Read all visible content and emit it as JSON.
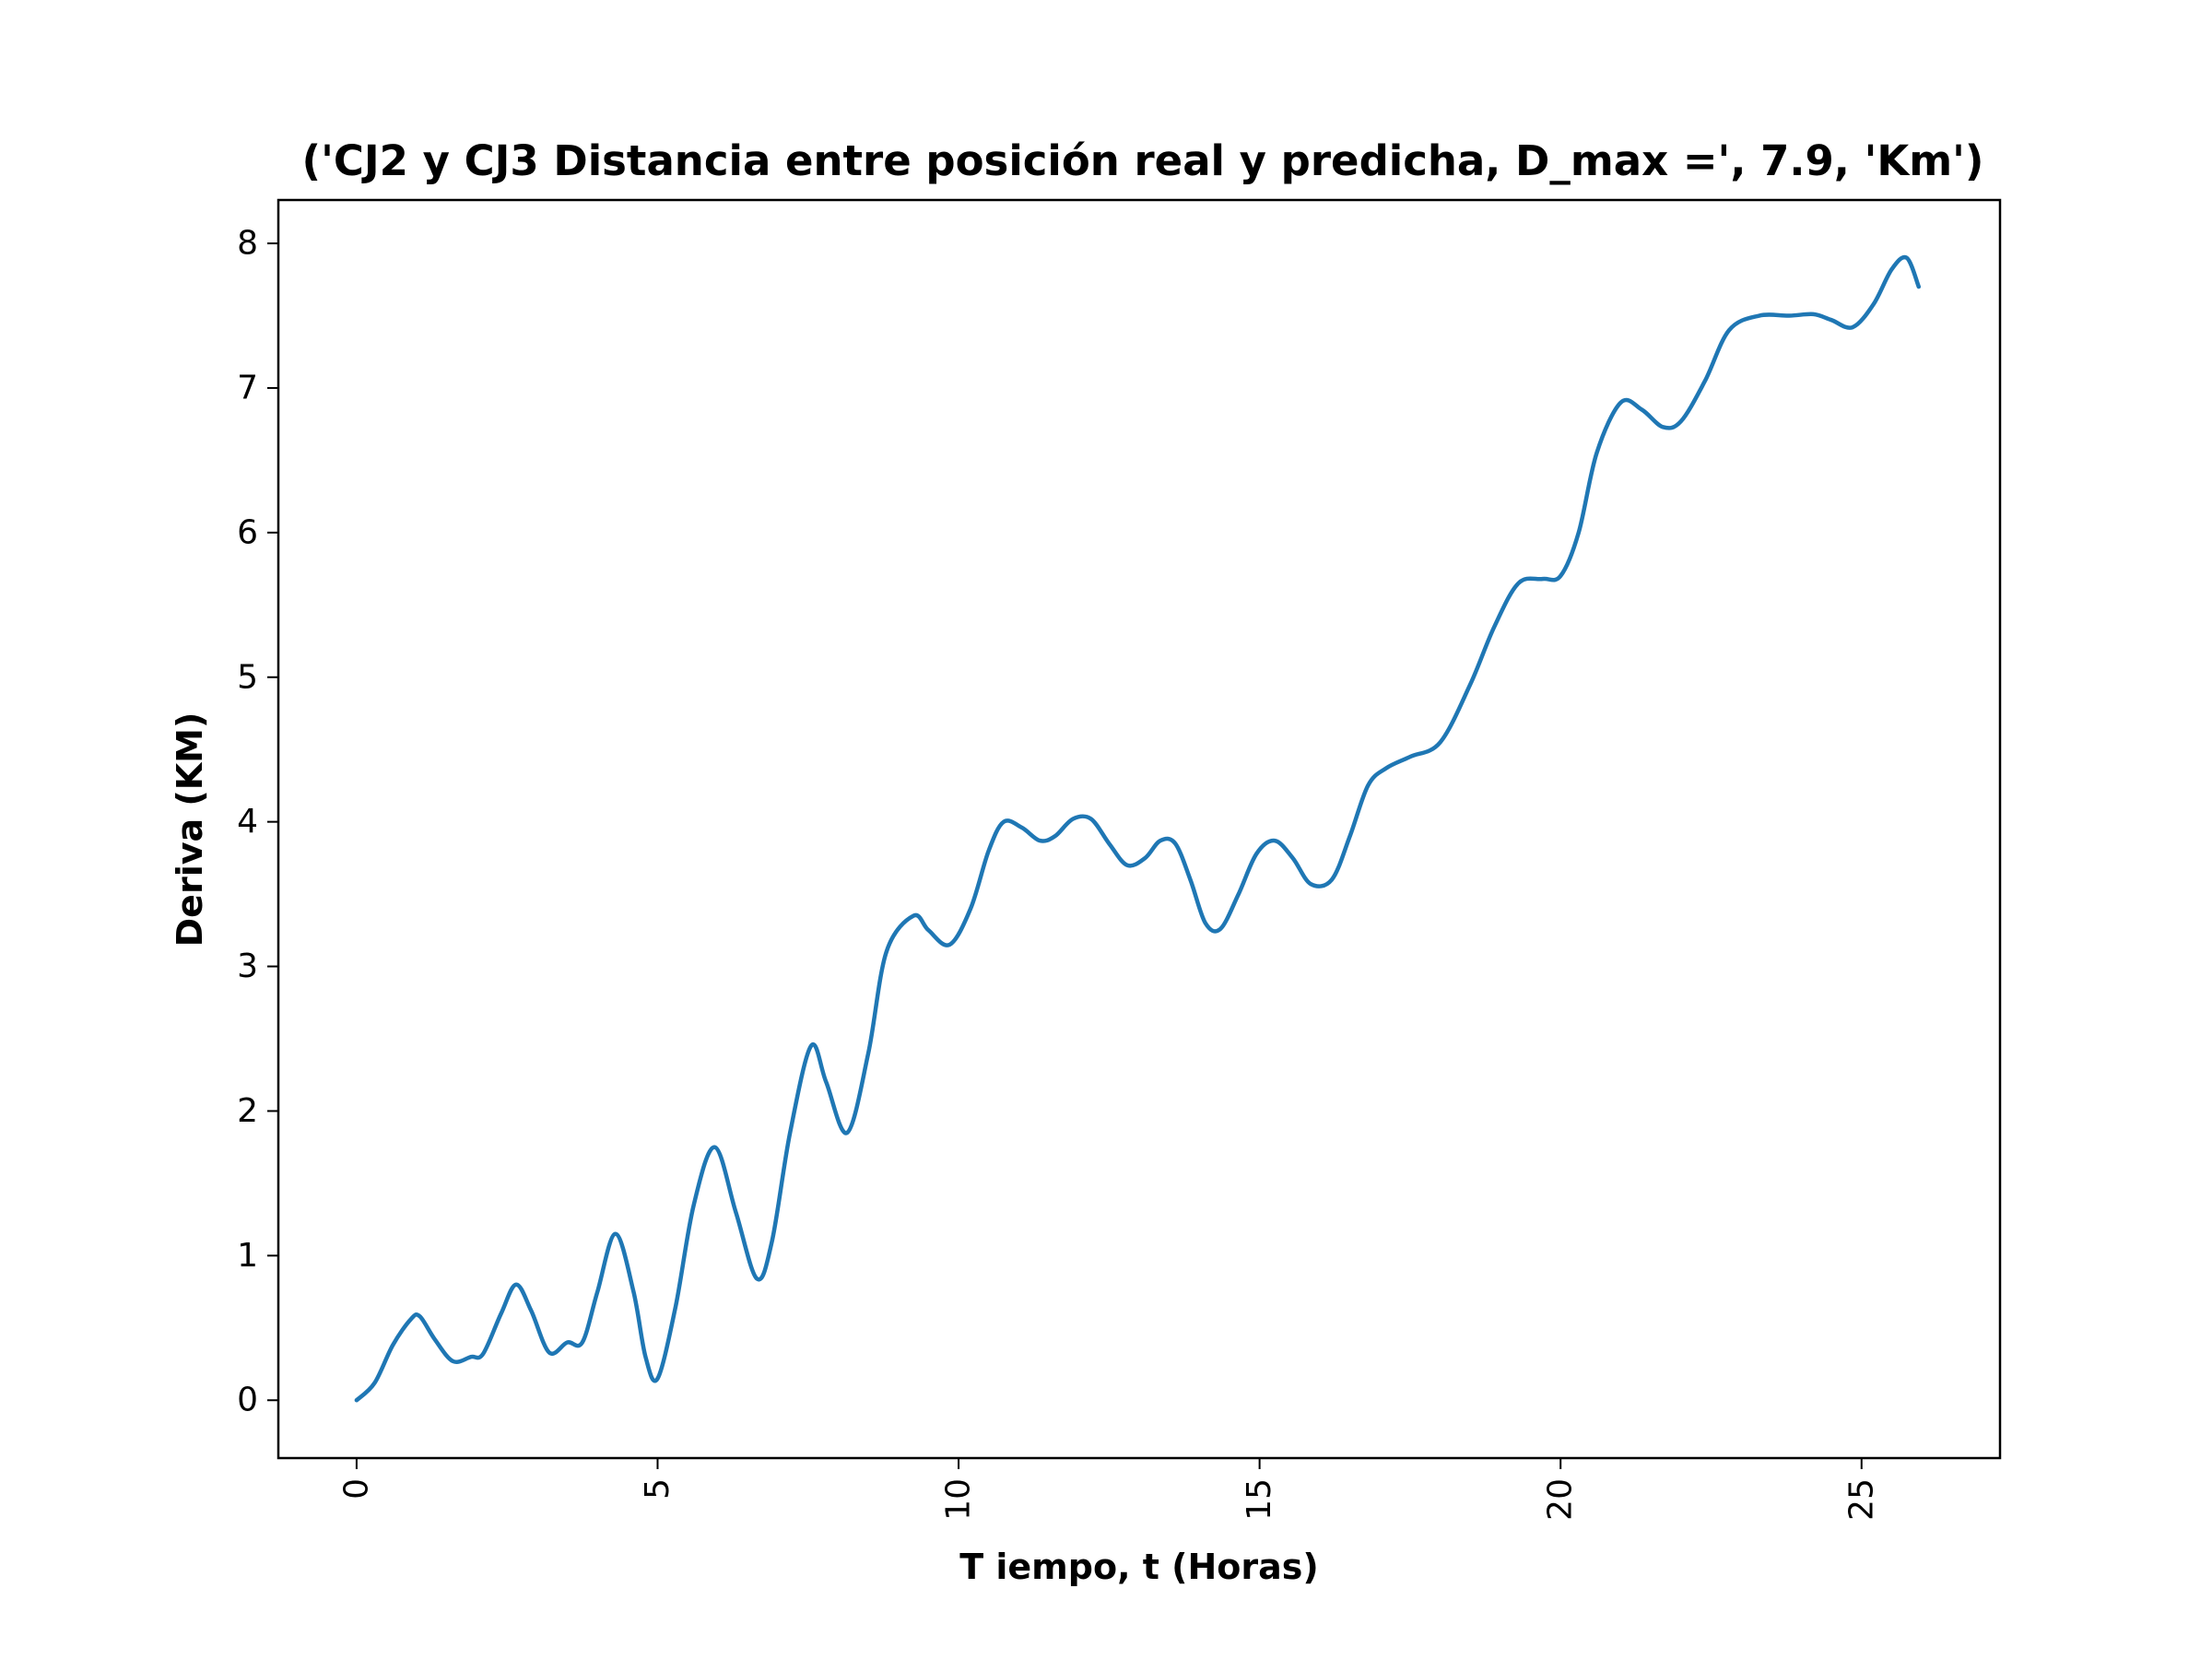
{
  "chart_data": {
    "type": "line",
    "title": "('CJ2 y CJ3 Distancia entre posición real y predicha, D_max =', 7.9, 'Km')",
    "xlabel": "T iempo, t (Horas)",
    "ylabel": "Deriva (KM)",
    "xlim": [
      -1.3,
      27.3
    ],
    "ylim": [
      -0.4,
      8.3
    ],
    "xticks": [
      0,
      5,
      10,
      15,
      20,
      25
    ],
    "yticks": [
      0,
      1,
      2,
      3,
      4,
      5,
      6,
      7,
      8
    ],
    "grid": false,
    "colors": {
      "line": "#1f77b4"
    },
    "series": [
      {
        "x": [
          0,
          0.3,
          0.6,
          0.9,
          1.05,
          1.3,
          1.6,
          1.9,
          2.1,
          2.4,
          2.65,
          2.9,
          3.2,
          3.5,
          3.75,
          4.0,
          4.3,
          4.6,
          4.8,
          5.0,
          5.3,
          5.6,
          5.95,
          6.3,
          6.65,
          6.9,
          7.2,
          7.55,
          7.8,
          8.15,
          8.5,
          8.8,
          9.25,
          9.5,
          9.85,
          10.2,
          10.5,
          10.75,
          11.05,
          11.35,
          11.6,
          11.9,
          12.2,
          12.5,
          12.8,
          13.1,
          13.35,
          13.6,
          13.85,
          14.1,
          14.35,
          14.65,
          14.95,
          15.25,
          15.55,
          15.85,
          16.2,
          16.5,
          16.8,
          17.1,
          17.5,
          18.0,
          18.5,
          18.9,
          19.3,
          19.7,
          20.0,
          20.3,
          20.6,
          21.0,
          21.35,
          21.7,
          22.0,
          22.4,
          22.8,
          23.3,
          23.8,
          24.2,
          24.5,
          24.85,
          25.2,
          25.5,
          25.75,
          25.95
        ],
        "y": [
          0,
          0.12,
          0.38,
          0.56,
          0.58,
          0.42,
          0.27,
          0.3,
          0.32,
          0.6,
          0.8,
          0.62,
          0.33,
          0.4,
          0.4,
          0.75,
          1.15,
          0.75,
          0.3,
          0.15,
          0.65,
          1.35,
          1.75,
          1.3,
          0.84,
          1.1,
          1.85,
          2.45,
          2.2,
          1.85,
          2.4,
          3.1,
          3.35,
          3.25,
          3.15,
          3.4,
          3.8,
          4.0,
          3.96,
          3.87,
          3.9,
          4.02,
          4.02,
          3.85,
          3.7,
          3.75,
          3.87,
          3.85,
          3.6,
          3.3,
          3.26,
          3.5,
          3.78,
          3.87,
          3.75,
          3.57,
          3.6,
          3.9,
          4.25,
          4.37,
          4.45,
          4.55,
          4.95,
          5.35,
          5.65,
          5.68,
          5.7,
          6.0,
          6.55,
          6.9,
          6.85,
          6.73,
          6.77,
          7.05,
          7.4,
          7.5,
          7.5,
          7.51,
          7.47,
          7.42,
          7.58,
          7.82,
          7.9,
          7.7
        ]
      }
    ]
  }
}
